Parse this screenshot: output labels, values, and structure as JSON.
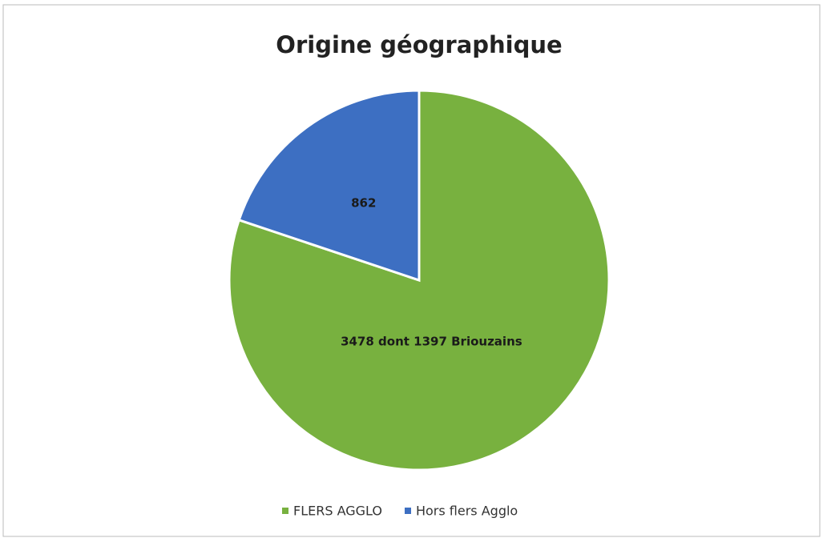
{
  "chart_data": {
    "type": "pie",
    "title": "Origine géographique",
    "categories": [
      "FLERS AGGLO",
      "Hors flers Agglo"
    ],
    "values": [
      3478,
      862
    ],
    "value_labels": [
      "3478 dont 1397 Briouzains",
      "862"
    ],
    "colors": [
      "#78b13f",
      "#3d6fc2"
    ],
    "legend": "bottom"
  }
}
